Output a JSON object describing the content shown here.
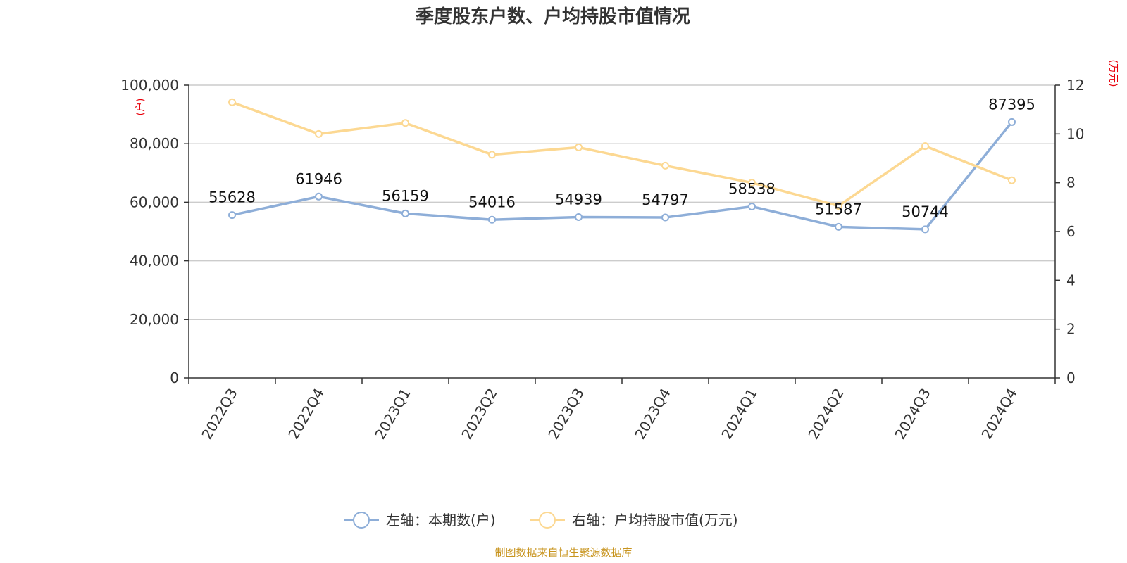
{
  "chart_data": {
    "type": "line",
    "title": "季度股东户数、户均持股市值情况",
    "categories": [
      "2022Q3",
      "2022Q4",
      "2023Q1",
      "2023Q2",
      "2023Q3",
      "2023Q4",
      "2024Q1",
      "2024Q2",
      "2024Q3",
      "2024Q4"
    ],
    "y_left": {
      "unit": "(户)",
      "range": [
        0,
        100000
      ],
      "ticks": [
        "0",
        "20,000",
        "40,000",
        "60,000",
        "80,000",
        "100,000"
      ],
      "tick_values": [
        0,
        20000,
        40000,
        60000,
        80000,
        100000
      ]
    },
    "y_right": {
      "unit": "(万元)",
      "range": [
        0,
        12
      ],
      "ticks": [
        "0",
        "2",
        "4",
        "6",
        "8",
        "10",
        "12"
      ],
      "tick_values": [
        0,
        2,
        4,
        6,
        8,
        10,
        12
      ]
    },
    "grid": true,
    "legend_position": "bottom",
    "series": [
      {
        "name": "左轴：本期数(户)",
        "axis": "left",
        "color": "#8eaed8",
        "values": [
          55628,
          61946,
          56159,
          54016,
          54939,
          54797,
          58538,
          51587,
          50744,
          87395
        ],
        "labels": [
          "55628",
          "61946",
          "56159",
          "54016",
          "54939",
          "54797",
          "58538",
          "51587",
          "50744",
          "87395"
        ]
      },
      {
        "name": "右轴：户均持股市值(万元)",
        "axis": "right",
        "color": "#fcd892",
        "values": [
          11.3,
          10.0,
          10.45,
          9.15,
          9.45,
          8.7,
          8.0,
          7.05,
          9.5,
          8.1
        ]
      }
    ],
    "source": "制图数据来自恒生聚源数据库"
  }
}
